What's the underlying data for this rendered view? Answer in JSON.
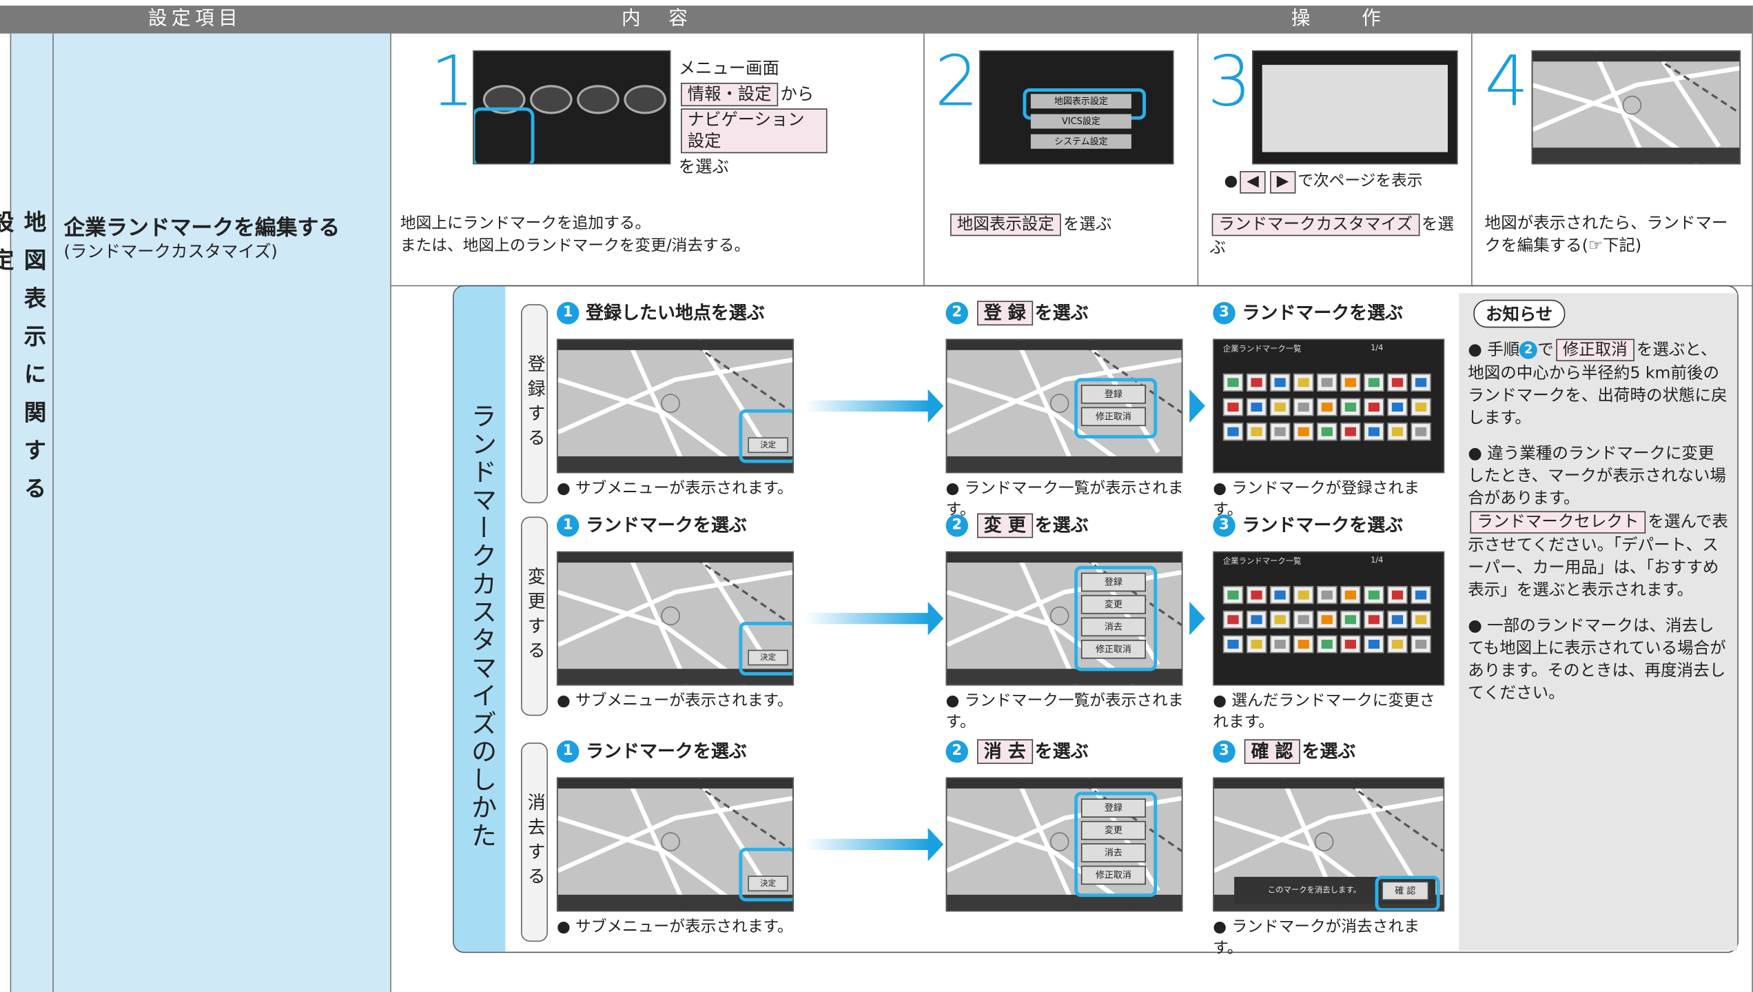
{
  "header": {
    "columns": [
      "設定項目",
      "内　容",
      "操　　作"
    ]
  },
  "category": "地図表示に関する設定",
  "item": {
    "title": "企業ランドマークを編集する",
    "subtitle": "(ランドマークカスタマイズ)"
  },
  "description": [
    "地図上にランドマークを追加する。",
    "または、地図上のランドマークを変更/消去する。"
  ],
  "steps": [
    {
      "number": "1",
      "parts": [
        {
          "text": "メニュー画面"
        },
        {
          "button": "情報・設定"
        },
        {
          "text": "から"
        },
        {
          "button": "ナビゲーション設定"
        },
        {
          "text": "を選ぶ"
        }
      ]
    },
    {
      "number": "2",
      "screen": [
        "地図表示設定",
        "VICS設定",
        "システム設定"
      ],
      "parts": [
        {
          "button": "地図表示設定"
        },
        {
          "text": "を選ぶ"
        }
      ]
    },
    {
      "number": "3",
      "note": [
        {
          "text": "●"
        },
        {
          "button": "◀"
        },
        {
          "button": "▶"
        },
        {
          "text": "で次ページを表示"
        }
      ],
      "parts": [
        {
          "button": "ランドマークカスタマイズ"
        },
        {
          "text": "を選ぶ"
        }
      ]
    },
    {
      "number": "4",
      "parts": [
        {
          "text": "地図が表示されたら、ランドマークを編集する(☞下記)"
        }
      ]
    }
  ],
  "procedure": {
    "title": "ランドマークカスタマイズのしかた",
    "rows": [
      {
        "label": "登録する",
        "steps": [
          {
            "number": "1",
            "parts": [
              {
                "text": "登録したい地点を選ぶ"
              }
            ],
            "select": "決定",
            "caption": "● サブメニューが表示されます。"
          },
          {
            "number": "2",
            "parts": [
              {
                "button": "登 録"
              },
              {
                "text": "を選ぶ"
              }
            ],
            "menu": [
              "登録",
              "修正取消"
            ],
            "caption": "● ランドマーク一覧が表示されます。"
          },
          {
            "number": "3",
            "parts": [
              {
                "text": "ランドマークを選ぶ"
              }
            ],
            "list_title": "企業ランドマーク一覧",
            "page": "1/4",
            "caption": "● ランドマークが登録されます。"
          }
        ]
      },
      {
        "label": "変更する",
        "steps": [
          {
            "number": "1",
            "parts": [
              {
                "text": "ランドマークを選ぶ"
              }
            ],
            "select": "決定",
            "caption": "● サブメニューが表示されます。"
          },
          {
            "number": "2",
            "parts": [
              {
                "button": "変 更"
              },
              {
                "text": "を選ぶ"
              }
            ],
            "menu": [
              "登録",
              "変更",
              "消去",
              "修正取消"
            ],
            "caption": "● ランドマーク一覧が表示されます。"
          },
          {
            "number": "3",
            "parts": [
              {
                "text": "ランドマークを選ぶ"
              }
            ],
            "list_title": "企業ランドマーク一覧",
            "page": "1/4",
            "caption": "● 選んだランドマークに変更されます。"
          }
        ]
      },
      {
        "label": "消去する",
        "steps": [
          {
            "number": "1",
            "parts": [
              {
                "text": "ランドマークを選ぶ"
              }
            ],
            "select": "決定",
            "caption": "● サブメニューが表示されます。"
          },
          {
            "number": "2",
            "parts": [
              {
                "button": "消 去"
              },
              {
                "text": "を選ぶ"
              }
            ],
            "menu": [
              "登録",
              "変更",
              "消去",
              "修正取消"
            ]
          },
          {
            "number": "3",
            "parts": [
              {
                "button": "確 認"
              },
              {
                "text": "を選ぶ"
              }
            ],
            "dialog": "このマークを消去します。",
            "confirm": "確 認",
            "caption": "● ランドマークが消去されます。"
          }
        ]
      }
    ]
  },
  "notice": {
    "title": "お知らせ",
    "items": [
      [
        {
          "text": "● 手順"
        },
        {
          "circle": "2"
        },
        {
          "text": "で"
        },
        {
          "button": "修正取消"
        },
        {
          "text": "を選ぶと、地図の中心から半径約5 km前後のランドマークを、出荷時の状態に戻します。"
        }
      ],
      [
        {
          "text": "● 違う業種のランドマークに変更したとき、マークが表示されない場合があります。"
        },
        {
          "button": "ランドマークセレクト"
        },
        {
          "text": "を選んで表示させてください。「デパート、スーパー、カー用品」は、「おすすめ表示」を選ぶと表示されます。"
        }
      ],
      [
        {
          "text": "● 一部のランドマークは、消去しても地図上に表示されている場合があります。そのときは、再度消去してください。"
        }
      ]
    ]
  }
}
